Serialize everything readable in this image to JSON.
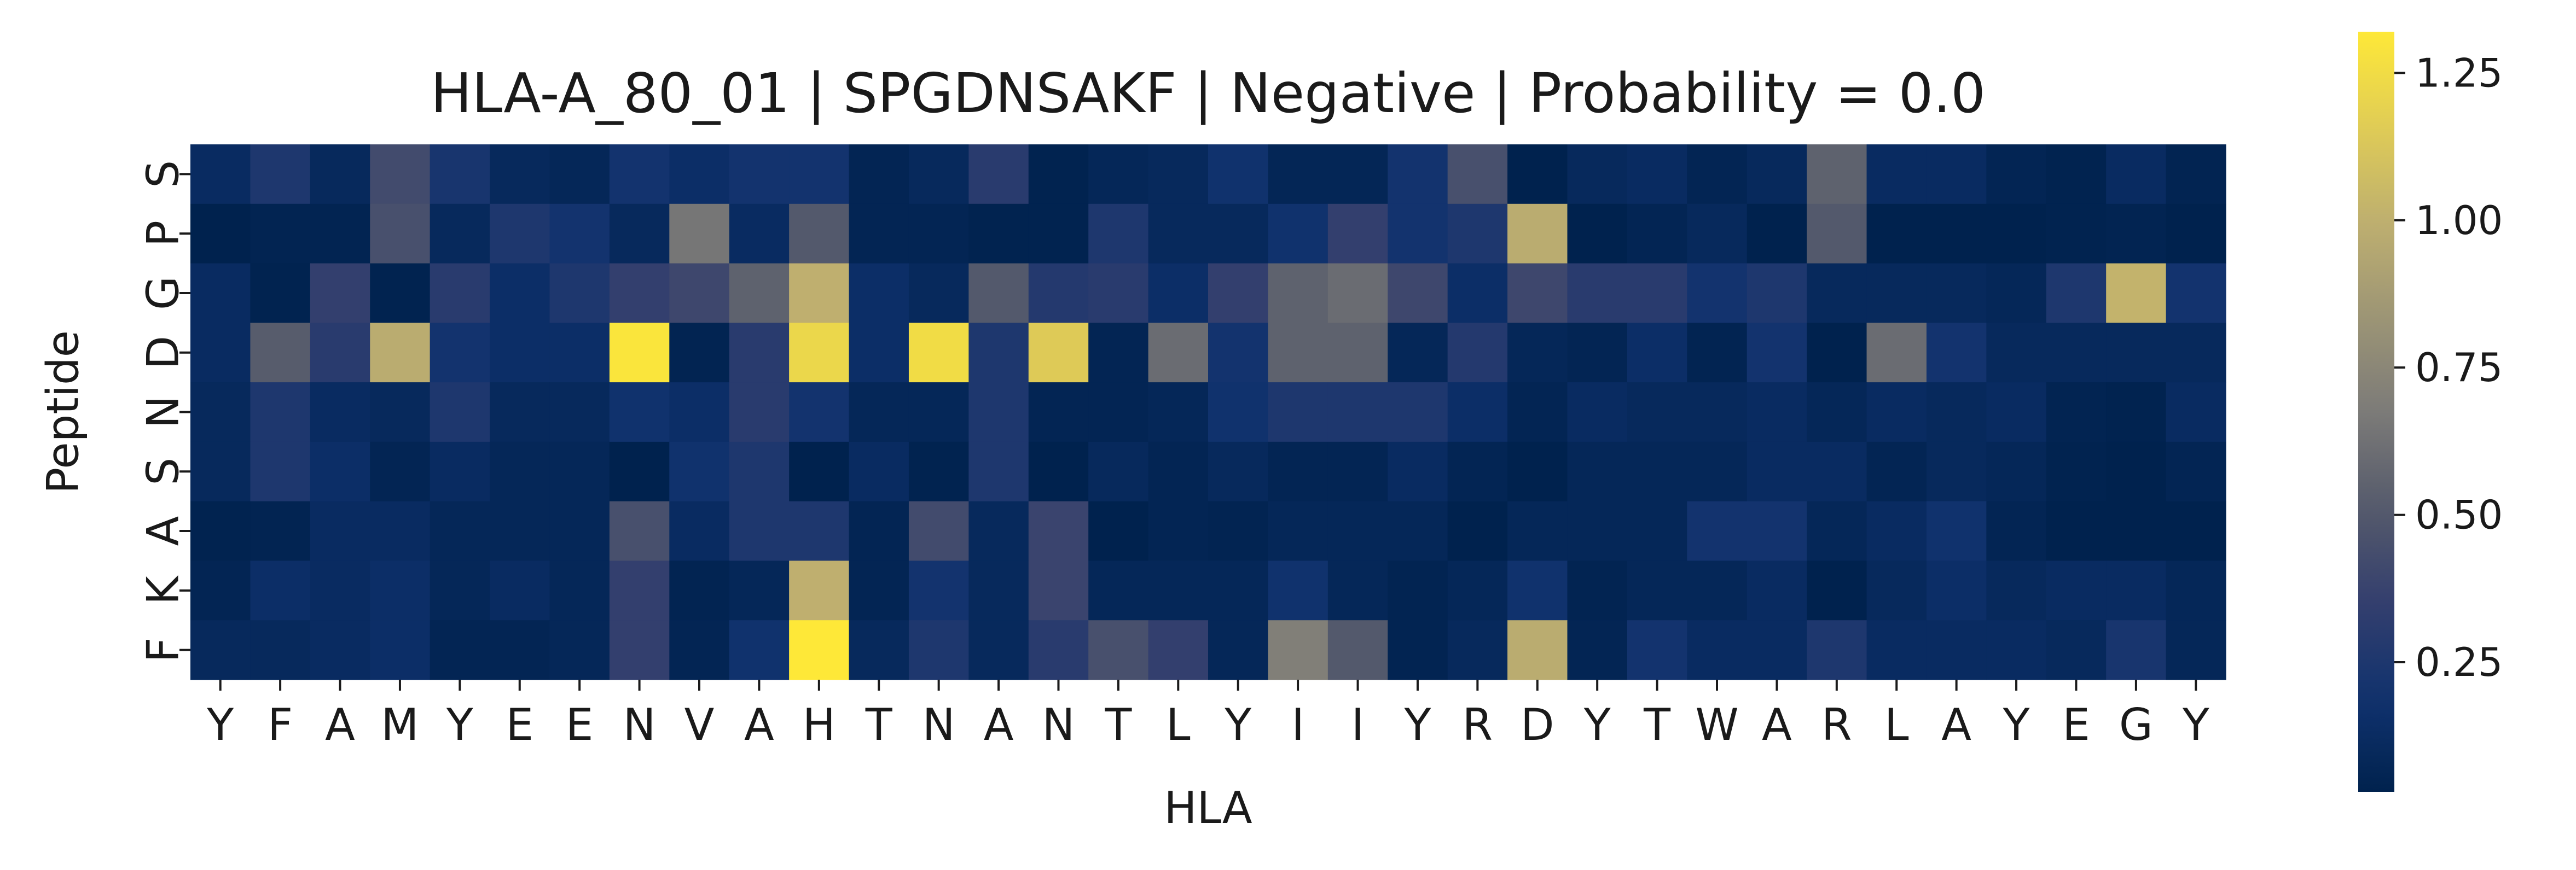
{
  "chart_data": {
    "type": "heatmap",
    "title": "HLA-A_80_01 | SPGDNSAKF | Negative | Probability = 0.0",
    "xlabel": "HLA",
    "ylabel": "Peptide",
    "x_categories": [
      "Y",
      "F",
      "A",
      "M",
      "Y",
      "E",
      "E",
      "N",
      "V",
      "A",
      "H",
      "T",
      "N",
      "A",
      "N",
      "T",
      "L",
      "Y",
      "I",
      "I",
      "Y",
      "R",
      "D",
      "Y",
      "T",
      "W",
      "A",
      "R",
      "L",
      "A",
      "Y",
      "E",
      "G",
      "Y"
    ],
    "y_categories": [
      "S",
      "P",
      "G",
      "D",
      "N",
      "S",
      "A",
      "K",
      "F"
    ],
    "values": [
      [
        0.12,
        0.25,
        0.1,
        0.42,
        0.22,
        0.1,
        0.08,
        0.2,
        0.15,
        0.2,
        0.2,
        0.06,
        0.1,
        0.3,
        0.04,
        0.08,
        0.1,
        0.18,
        0.07,
        0.07,
        0.2,
        0.45,
        0.02,
        0.1,
        0.12,
        0.06,
        0.1,
        0.55,
        0.12,
        0.12,
        0.06,
        0.04,
        0.12,
        0.05
      ],
      [
        0.02,
        0.05,
        0.05,
        0.45,
        0.1,
        0.25,
        0.2,
        0.1,
        0.65,
        0.12,
        0.5,
        0.06,
        0.06,
        0.04,
        0.04,
        0.25,
        0.1,
        0.1,
        0.18,
        0.35,
        0.2,
        0.25,
        0.98,
        0.02,
        0.06,
        0.1,
        0.02,
        0.5,
        0.03,
        0.03,
        0.03,
        0.04,
        0.05,
        0.02
      ],
      [
        0.12,
        0.04,
        0.35,
        0.04,
        0.3,
        0.15,
        0.25,
        0.35,
        0.4,
        0.55,
        1.0,
        0.15,
        0.1,
        0.5,
        0.28,
        0.3,
        0.15,
        0.35,
        0.55,
        0.6,
        0.4,
        0.15,
        0.4,
        0.3,
        0.3,
        0.2,
        0.25,
        0.1,
        0.1,
        0.1,
        0.08,
        0.25,
        1.02,
        0.2
      ],
      [
        0.12,
        0.52,
        0.3,
        0.98,
        0.2,
        0.15,
        0.15,
        1.3,
        0.05,
        0.3,
        1.22,
        0.15,
        1.25,
        0.25,
        1.15,
        0.06,
        0.6,
        0.2,
        0.55,
        0.55,
        0.08,
        0.28,
        0.08,
        0.06,
        0.15,
        0.05,
        0.2,
        0.03,
        0.6,
        0.2,
        0.1,
        0.1,
        0.1,
        0.1
      ],
      [
        0.1,
        0.25,
        0.12,
        0.1,
        0.25,
        0.1,
        0.1,
        0.18,
        0.15,
        0.3,
        0.2,
        0.08,
        0.08,
        0.25,
        0.06,
        0.06,
        0.08,
        0.18,
        0.25,
        0.25,
        0.25,
        0.15,
        0.06,
        0.12,
        0.1,
        0.1,
        0.12,
        0.08,
        0.12,
        0.1,
        0.12,
        0.05,
        0.04,
        0.12
      ],
      [
        0.1,
        0.25,
        0.15,
        0.06,
        0.12,
        0.08,
        0.08,
        0.03,
        0.18,
        0.25,
        0.02,
        0.12,
        0.04,
        0.25,
        0.03,
        0.1,
        0.06,
        0.1,
        0.06,
        0.06,
        0.12,
        0.06,
        0.03,
        0.08,
        0.08,
        0.08,
        0.12,
        0.12,
        0.06,
        0.1,
        0.08,
        0.04,
        0.03,
        0.06
      ],
      [
        0.04,
        0.05,
        0.12,
        0.12,
        0.08,
        0.08,
        0.08,
        0.45,
        0.12,
        0.25,
        0.25,
        0.06,
        0.42,
        0.1,
        0.38,
        0.02,
        0.06,
        0.05,
        0.08,
        0.08,
        0.08,
        0.02,
        0.08,
        0.08,
        0.08,
        0.2,
        0.2,
        0.08,
        0.12,
        0.18,
        0.06,
        0.03,
        0.03,
        0.03
      ],
      [
        0.06,
        0.15,
        0.12,
        0.15,
        0.08,
        0.12,
        0.08,
        0.35,
        0.05,
        0.08,
        1.0,
        0.06,
        0.2,
        0.1,
        0.38,
        0.08,
        0.08,
        0.08,
        0.18,
        0.08,
        0.05,
        0.08,
        0.18,
        0.05,
        0.08,
        0.08,
        0.12,
        0.02,
        0.1,
        0.15,
        0.1,
        0.12,
        0.12,
        0.08
      ],
      [
        0.1,
        0.1,
        0.12,
        0.15,
        0.06,
        0.06,
        0.08,
        0.35,
        0.06,
        0.18,
        1.32,
        0.1,
        0.25,
        0.1,
        0.3,
        0.45,
        0.35,
        0.08,
        0.7,
        0.5,
        0.05,
        0.1,
        0.98,
        0.06,
        0.2,
        0.12,
        0.12,
        0.25,
        0.12,
        0.12,
        0.12,
        0.1,
        0.22,
        0.08
      ]
    ],
    "vmin": 0.03,
    "vmax": 1.32,
    "colormap": "cividis",
    "colorbar_ticks": [
      0.25,
      0.5,
      0.75,
      1.0,
      1.25
    ],
    "colorbar_tick_labels": [
      "0.25",
      "0.50",
      "0.75",
      "1.00",
      "1.25"
    ],
    "grid": false,
    "legend": "colorbar-right"
  }
}
